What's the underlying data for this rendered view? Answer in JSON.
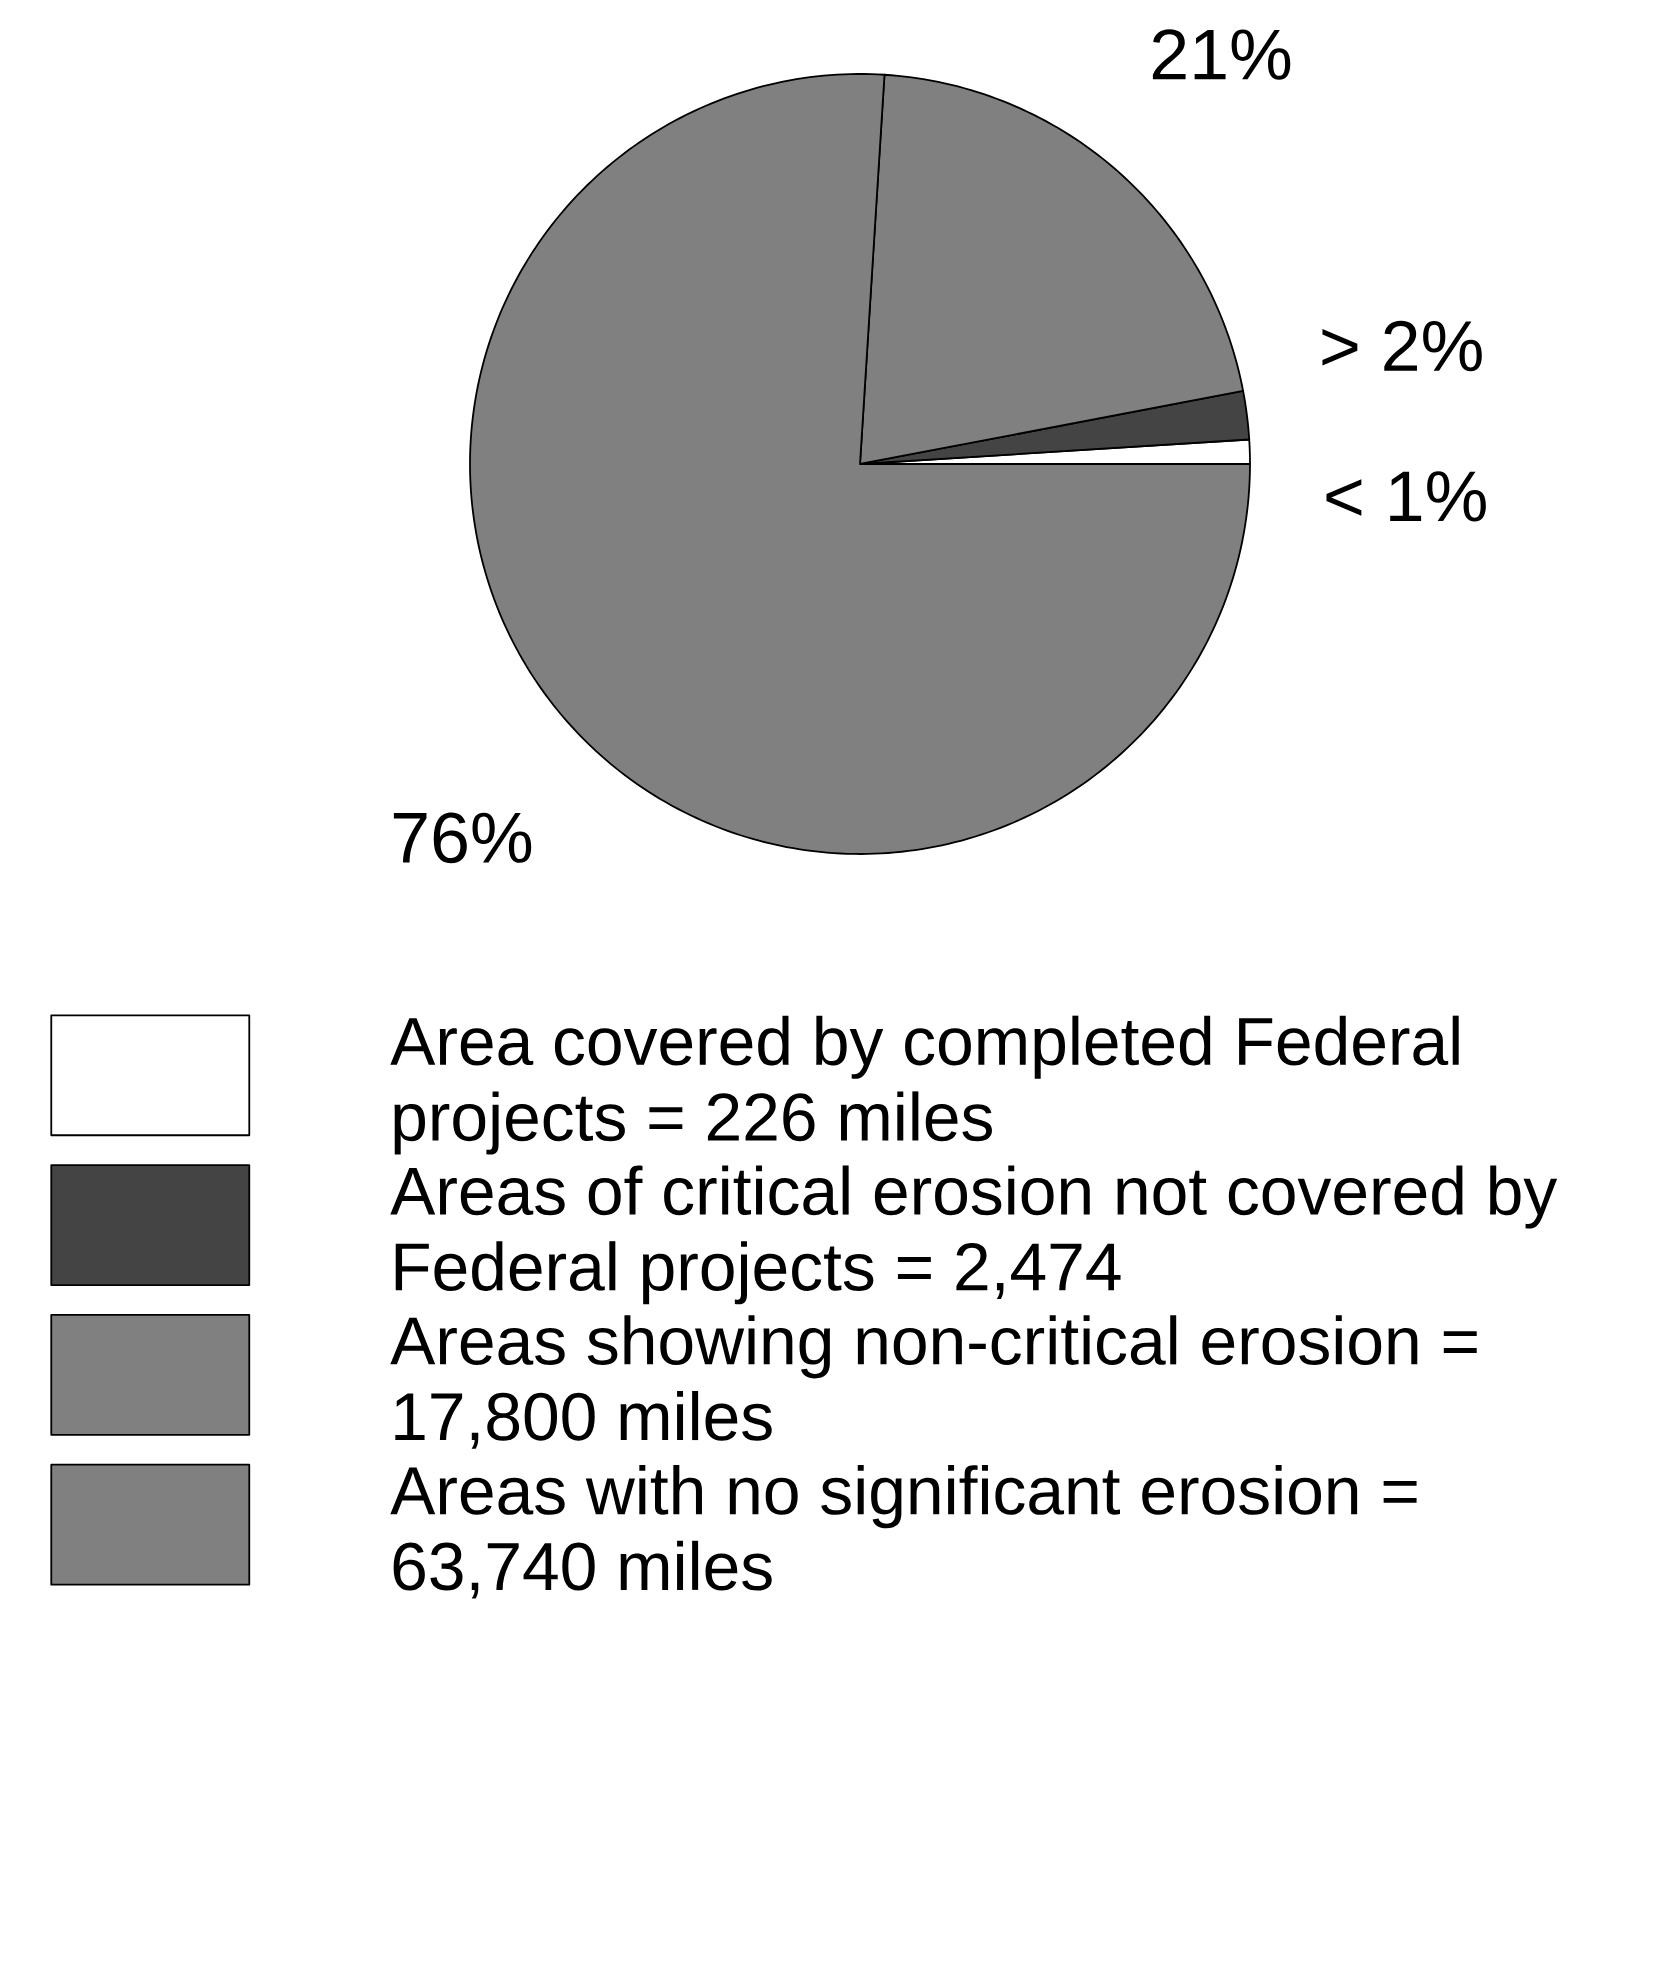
{
  "chart_data": {
    "type": "pie",
    "categories": [
      "Area covered by completed Federal projects = 226 miles",
      "Areas of critical erosion not covered by Federal projects = 2,474",
      "Areas showing non-critical erosion = 17,800 miles",
      "Areas with no significant erosion = 63,740 miles"
    ],
    "values": [
      1,
      2,
      21,
      76
    ],
    "value_labels": [
      "< 1%",
      "> 2%",
      "21%",
      "76%"
    ],
    "colors": [
      "#ffffff",
      "#444444",
      "#808080",
      "#808080"
    ],
    "legend": "bottom"
  }
}
